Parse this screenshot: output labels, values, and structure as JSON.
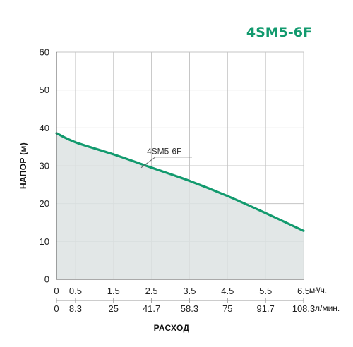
{
  "model": "4SM5-6F",
  "chart_data": {
    "type": "area",
    "title": "4SM5-6F",
    "ylabel": "НАПОР (м)",
    "xlabel": "РАСХОД",
    "ylim": [
      0,
      60
    ],
    "xlim": [
      0,
      6.5
    ],
    "y_ticks": [
      "0",
      "10",
      "20",
      "30",
      "40",
      "50",
      "60"
    ],
    "x_ticks_primary": [
      "0",
      "0.5",
      "1.5",
      "2.5",
      "3.5",
      "4.5",
      "5.5",
      "6.5"
    ],
    "x_ticks_primary_values": [
      0,
      0.5,
      1.5,
      2.5,
      3.5,
      4.5,
      5.5,
      6.5
    ],
    "x_unit_primary": "м³/ч.",
    "x_ticks_secondary": [
      "0",
      "8.3",
      "25",
      "41.7",
      "58.3",
      "75",
      "91.7",
      "108.3"
    ],
    "x_unit_secondary": "л/мин.",
    "grid": true,
    "series": [
      {
        "name": "4SM5-6F",
        "color": "#129a6e",
        "fill": "#dde3e3",
        "x": [
          0,
          0.5,
          1.5,
          2.5,
          3.5,
          4.5,
          5.5,
          6.5
        ],
        "y": [
          38.6,
          36.2,
          33.0,
          29.5,
          26.0,
          22.0,
          17.5,
          12.8
        ]
      }
    ]
  }
}
